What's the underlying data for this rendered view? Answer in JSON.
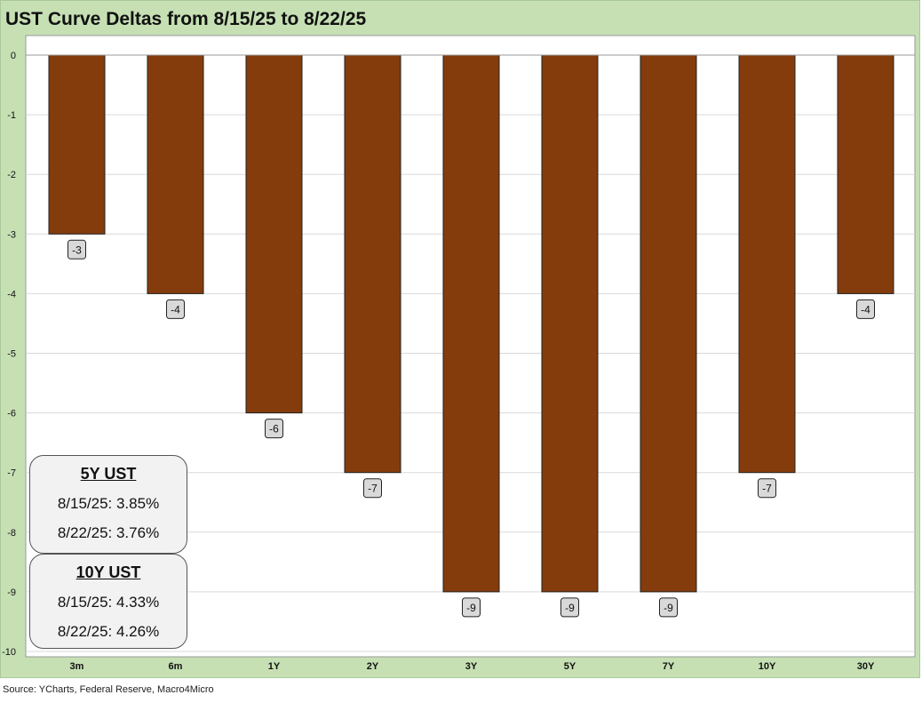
{
  "title": "UST Curve Deltas from 8/15/25 to 8/22/25",
  "source": "Source: YCharts, Federal Reserve, Macro4Micro",
  "colors": {
    "bar": "#843c0c",
    "frame": "#c6e0b4",
    "plot": "#ffffff",
    "label_box": "#d9d9d9"
  },
  "chart_data": {
    "type": "bar",
    "title": "UST Curve Deltas from 8/15/25 to 8/22/25",
    "categories": [
      "3m",
      "6m",
      "1Y",
      "2Y",
      "3Y",
      "5Y",
      "7Y",
      "10Y",
      "30Y"
    ],
    "values": [
      -3,
      -4,
      -6,
      -7,
      -9,
      -9,
      -9,
      -7,
      -4
    ],
    "data_labels": [
      "-3",
      "-4",
      "-6",
      "-7",
      "-9",
      "-9",
      "-9",
      "-7",
      "-4"
    ],
    "ylim": [
      -10,
      0
    ],
    "yticks": [
      "0",
      "-1",
      "-2",
      "-3",
      "-4",
      "-5",
      "-6",
      "-7",
      "-8",
      "-9",
      "-10"
    ],
    "grid": true,
    "legend": "none"
  },
  "info_boxes": [
    {
      "title": "5Y UST",
      "rows": [
        "8/15/25:  3.85%",
        "8/22/25:  3.76%"
      ]
    },
    {
      "title": "10Y UST",
      "rows": [
        "8/15/25:  4.33%",
        "8/22/25:  4.26%"
      ]
    }
  ]
}
